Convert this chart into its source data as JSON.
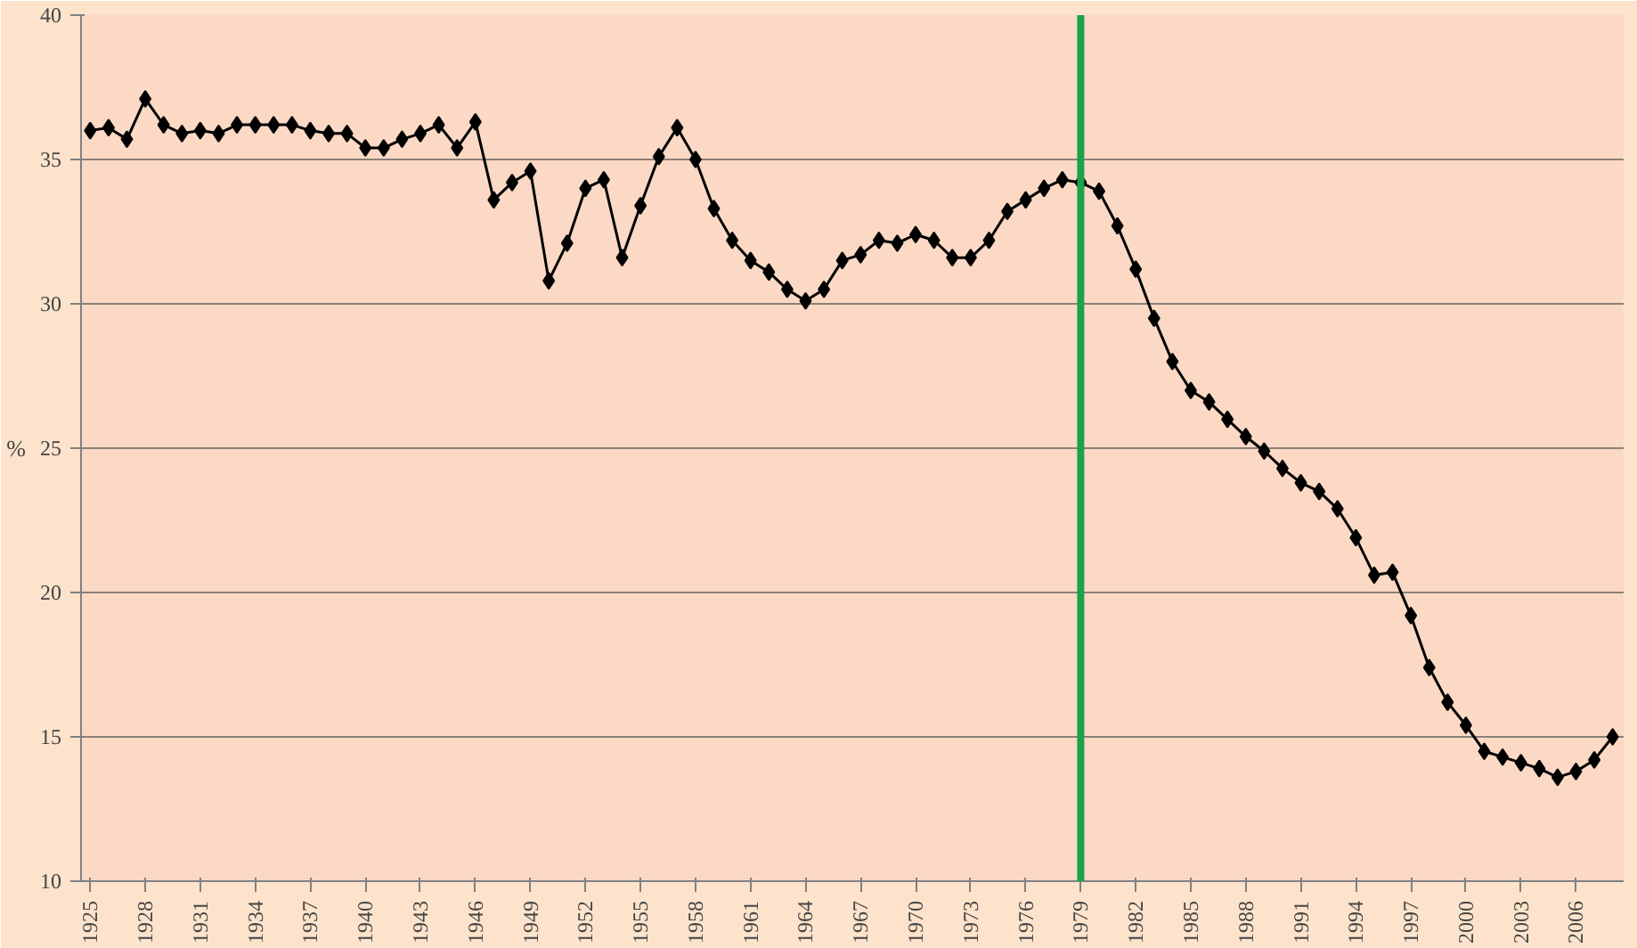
{
  "chart_data": {
    "type": "line",
    "ylabel": "%",
    "x": [
      1925,
      1926,
      1927,
      1928,
      1929,
      1930,
      1931,
      1932,
      1933,
      1934,
      1935,
      1936,
      1937,
      1938,
      1939,
      1940,
      1941,
      1942,
      1943,
      1944,
      1945,
      1946,
      1947,
      1948,
      1949,
      1950,
      1951,
      1952,
      1953,
      1954,
      1955,
      1956,
      1957,
      1958,
      1959,
      1960,
      1961,
      1962,
      1963,
      1964,
      1965,
      1966,
      1967,
      1968,
      1969,
      1970,
      1971,
      1972,
      1973,
      1974,
      1975,
      1976,
      1977,
      1978,
      1979,
      1980,
      1981,
      1982,
      1983,
      1984,
      1985,
      1986,
      1987,
      1988,
      1989,
      1990,
      1991,
      1992,
      1993,
      1994,
      1995,
      1996,
      1997,
      1998,
      1999,
      2000,
      2001,
      2002,
      2003,
      2004,
      2005,
      2006,
      2007,
      2008
    ],
    "series": [
      {
        "color": "#000000",
        "values": [
          36.0,
          36.1,
          35.7,
          37.1,
          36.2,
          35.9,
          36.0,
          35.9,
          36.2,
          36.2,
          36.2,
          36.2,
          36.0,
          35.9,
          35.9,
          35.4,
          35.4,
          35.7,
          35.9,
          36.2,
          35.4,
          36.3,
          33.6,
          34.2,
          34.6,
          30.8,
          32.1,
          34.0,
          34.3,
          31.6,
          33.4,
          35.1,
          36.1,
          35.0,
          33.3,
          32.2,
          31.5,
          31.1,
          30.5,
          30.1,
          30.5,
          31.5,
          31.7,
          32.2,
          32.1,
          32.4,
          32.2,
          31.6,
          31.6,
          32.2,
          33.2,
          33.6,
          34.0,
          34.3,
          34.2,
          33.9,
          32.7,
          31.2,
          29.5,
          28.0,
          27.0,
          26.6,
          26.0,
          25.4,
          24.9,
          24.3,
          23.8,
          23.5,
          22.9,
          21.9,
          20.6,
          20.7,
          19.2,
          17.4,
          16.2,
          15.4,
          14.5,
          14.3,
          14.1,
          13.9,
          13.6,
          13.8,
          14.2,
          15.0
        ]
      }
    ],
    "xlim": [
      1924.5,
      2008.6
    ],
    "xticks": [
      1925,
      1928,
      1931,
      1934,
      1937,
      1940,
      1943,
      1946,
      1949,
      1952,
      1955,
      1958,
      1961,
      1964,
      1967,
      1970,
      1973,
      1976,
      1979,
      1982,
      1985,
      1988,
      1991,
      1994,
      1997,
      2000,
      2003,
      2006
    ],
    "ylim": [
      10,
      40
    ],
    "yticks": [
      10,
      15,
      20,
      25,
      30,
      35,
      40
    ],
    "ref_lines": [
      {
        "axis": "x",
        "value": 1979,
        "color": "#1ba24a"
      }
    ],
    "grid": "y",
    "marker": "diamond",
    "line_style": "solid"
  }
}
